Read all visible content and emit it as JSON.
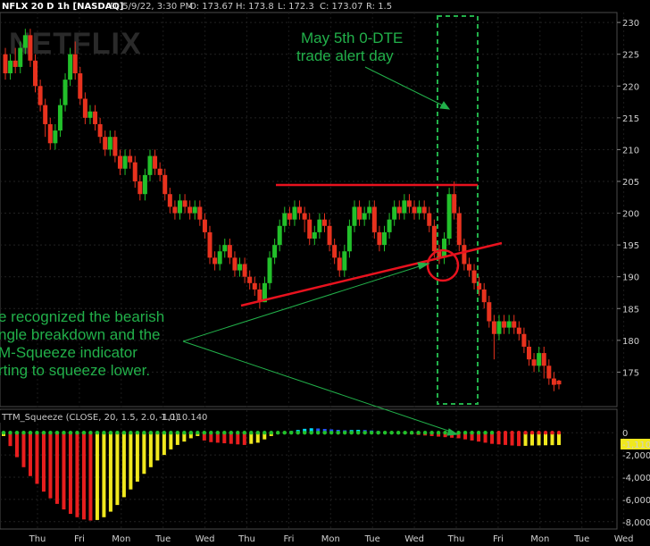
{
  "header": {
    "symbol": "NFLX 20 D 1h [NASDAQ]",
    "date": "D: 5/9/22, 3:30 PM",
    "open": "O: 173.67",
    "high": "H: 173.8",
    "low": "L: 172.3",
    "close": "C: 173.07",
    "range": "R: 1.5"
  },
  "watermark": "NETFLIX",
  "annotations": {
    "alert_line1": "May 5th 0-DTE",
    "alert_line2": "trade alert day",
    "note_line1": "e recognized the bearish",
    "note_line2": "ngle breakdown and the",
    "note_line3": "M-Squeeze indicator",
    "note_line4": "rting to squeeze lower."
  },
  "colors": {
    "up": "#22c02a",
    "down": "#e8321e",
    "annotation": "#22b04a",
    "trendline": "#e8121e",
    "hist_red": "#e81e1e",
    "hist_yellow": "#f0e81e",
    "hist_green_dot": "#22c02a",
    "hist_red_dot": "#e81e1e"
  },
  "chart_data": [
    {
      "type": "candlestick",
      "ylim": [
        170,
        231
      ],
      "yticks": [
        175,
        180,
        185,
        190,
        195,
        200,
        205,
        210,
        215,
        220,
        225,
        230
      ],
      "xticks": [
        "Thu",
        "Fri",
        "Mon",
        "Tue",
        "Wed",
        "Thu",
        "Fri",
        "Mon",
        "Tue",
        "Wed",
        "Thu",
        "Fri",
        "Mon",
        "Tue",
        "Wed"
      ],
      "candles": [
        [
          225,
          222,
          226,
          221
        ],
        [
          222,
          224,
          225,
          221
        ],
        [
          224,
          223,
          226,
          222
        ],
        [
          223,
          226,
          227,
          222
        ],
        [
          226,
          228,
          229,
          225
        ],
        [
          228,
          224,
          229,
          223
        ],
        [
          224,
          220,
          225,
          219
        ],
        [
          220,
          217,
          221,
          216
        ],
        [
          217,
          214,
          218,
          212
        ],
        [
          214,
          211,
          215,
          210
        ],
        [
          211,
          213,
          214,
          210
        ],
        [
          213,
          217,
          218,
          212
        ],
        [
          217,
          221,
          222,
          216
        ],
        [
          221,
          225,
          226,
          220
        ],
        [
          225,
          222,
          227,
          221
        ],
        [
          222,
          218,
          223,
          217
        ],
        [
          218,
          215,
          219,
          214
        ],
        [
          215,
          216,
          217,
          214
        ],
        [
          216,
          214,
          217,
          213
        ],
        [
          214,
          212,
          215,
          211
        ],
        [
          212,
          210,
          213,
          209
        ],
        [
          210,
          212,
          213,
          209
        ],
        [
          212,
          209,
          213,
          208
        ],
        [
          209,
          207,
          210,
          206
        ],
        [
          207,
          209,
          210,
          206
        ],
        [
          209,
          208,
          210,
          207
        ],
        [
          208,
          205,
          209,
          204
        ],
        [
          205,
          203,
          206,
          202
        ],
        [
          203,
          206,
          207,
          202
        ],
        [
          206,
          209,
          210,
          205
        ],
        [
          209,
          207,
          210,
          206
        ],
        [
          207,
          206,
          208,
          205
        ],
        [
          206,
          203,
          207,
          202
        ],
        [
          203,
          201,
          204,
          200
        ],
        [
          201,
          200,
          202,
          199
        ],
        [
          200,
          202,
          203,
          199
        ],
        [
          202,
          201,
          203,
          200
        ],
        [
          201,
          200,
          202,
          199
        ],
        [
          200,
          201,
          202,
          199
        ],
        [
          201,
          199,
          202,
          198
        ],
        [
          199,
          197,
          200,
          196
        ],
        [
          197,
          193,
          198,
          192
        ],
        [
          193,
          192,
          194,
          191
        ],
        [
          192,
          194,
          195,
          191
        ],
        [
          194,
          195,
          196,
          193
        ],
        [
          195,
          193,
          196,
          192
        ],
        [
          193,
          191,
          194,
          190
        ],
        [
          191,
          192,
          193,
          190
        ],
        [
          192,
          190,
          193,
          189
        ],
        [
          190,
          189,
          191,
          188
        ],
        [
          189,
          188,
          190,
          187
        ],
        [
          188,
          186,
          189,
          185
        ],
        [
          186,
          189,
          190,
          186
        ],
        [
          189,
          193,
          194,
          188
        ],
        [
          193,
          195,
          196,
          192
        ],
        [
          195,
          198,
          199,
          194
        ],
        [
          198,
          200,
          201,
          197
        ],
        [
          200,
          199,
          201,
          198
        ],
        [
          199,
          201,
          202,
          198
        ],
        [
          201,
          200,
          202,
          199
        ],
        [
          200,
          199,
          201,
          197
        ],
        [
          199,
          196,
          200,
          195
        ],
        [
          196,
          197,
          198,
          195
        ],
        [
          197,
          199,
          200,
          196
        ],
        [
          199,
          198,
          200,
          197
        ],
        [
          198,
          195,
          199,
          194
        ],
        [
          195,
          193,
          196,
          192
        ],
        [
          193,
          191,
          194,
          190
        ],
        [
          191,
          194,
          195,
          190
        ],
        [
          194,
          198,
          199,
          193
        ],
        [
          198,
          201,
          202,
          197
        ],
        [
          201,
          199,
          202,
          198
        ],
        [
          199,
          200,
          201,
          198
        ],
        [
          200,
          201,
          202,
          199
        ],
        [
          201,
          197,
          202,
          196
        ],
        [
          197,
          195,
          198,
          194
        ],
        [
          195,
          197,
          198,
          194
        ],
        [
          197,
          199,
          200,
          196
        ],
        [
          199,
          201,
          202,
          198
        ],
        [
          201,
          200,
          202,
          199
        ],
        [
          200,
          202,
          203,
          199
        ],
        [
          202,
          201,
          203,
          200
        ],
        [
          201,
          200,
          202,
          199
        ],
        [
          200,
          201,
          202,
          199
        ],
        [
          201,
          200,
          202,
          199
        ],
        [
          200,
          198,
          201,
          197
        ],
        [
          198,
          194,
          199,
          193
        ],
        [
          194,
          193,
          195,
          192
        ],
        [
          193,
          196,
          197,
          192
        ],
        [
          196,
          203,
          204,
          195
        ],
        [
          203,
          200,
          205,
          199
        ],
        [
          200,
          195,
          201,
          194
        ],
        [
          195,
          192,
          196,
          191
        ],
        [
          192,
          191,
          193,
          190
        ],
        [
          191,
          189,
          192,
          188
        ],
        [
          189,
          188,
          190,
          187
        ],
        [
          188,
          186,
          189,
          185
        ],
        [
          186,
          183,
          187,
          182
        ],
        [
          183,
          181,
          184,
          177
        ],
        [
          181,
          183,
          184,
          180
        ],
        [
          183,
          182,
          184,
          181
        ],
        [
          182,
          183,
          184,
          181
        ],
        [
          183,
          182,
          184,
          181
        ],
        [
          182,
          181,
          183,
          180
        ],
        [
          181,
          179,
          182,
          178
        ],
        [
          179,
          177,
          180,
          176
        ],
        [
          177,
          176,
          178,
          175
        ],
        [
          176,
          178,
          179,
          175
        ],
        [
          178,
          176,
          179,
          174
        ],
        [
          176,
          174,
          177,
          173
        ],
        [
          174,
          173,
          175,
          172
        ],
        [
          173.67,
          173.07,
          173.8,
          172.3
        ]
      ],
      "levels": {
        "resistance": 204.5,
        "trend_start": 186,
        "trend_end": 195.5
      }
    },
    {
      "type": "bar",
      "title": "TTM_Squeeze (CLOSE, 20, 1.5, 2.0, 1.0)",
      "last_value": "-1,110.14",
      "last_value_short": "-1,110",
      "squeeze_value": "0",
      "ylim": [
        -8500,
        500
      ],
      "yticks": [
        0,
        -2000,
        -4000,
        -6000,
        -8000
      ],
      "ytick_labels": [
        "0",
        "2,000",
        "4,000",
        "6,000",
        "8,000"
      ],
      "values": [
        -300,
        -1200,
        -2200,
        -3100,
        -3900,
        -4600,
        -5300,
        -5900,
        -6400,
        -6900,
        -7300,
        -7600,
        -7800,
        -7900,
        -7850,
        -7600,
        -7100,
        -6500,
        -5800,
        -5100,
        -4400,
        -3700,
        -3100,
        -2500,
        -2000,
        -1500,
        -1100,
        -800,
        -500,
        -300,
        -700,
        -850,
        -900,
        -950,
        -1000,
        -1050,
        -1100,
        -1000,
        -900,
        -600,
        -300,
        -100,
        50,
        150,
        250,
        350,
        400,
        380,
        340,
        300,
        260,
        220,
        240,
        260,
        240,
        200,
        150,
        100,
        50,
        -50,
        -100,
        -150,
        -200,
        -250,
        -300,
        -350,
        -400,
        -450,
        -500,
        -600,
        -700,
        -800,
        -900,
        -1000,
        -1050,
        -1100,
        -1150,
        -1200,
        -1180,
        -1150,
        -1140,
        -1130,
        -1120,
        -1110.14
      ]
    }
  ]
}
